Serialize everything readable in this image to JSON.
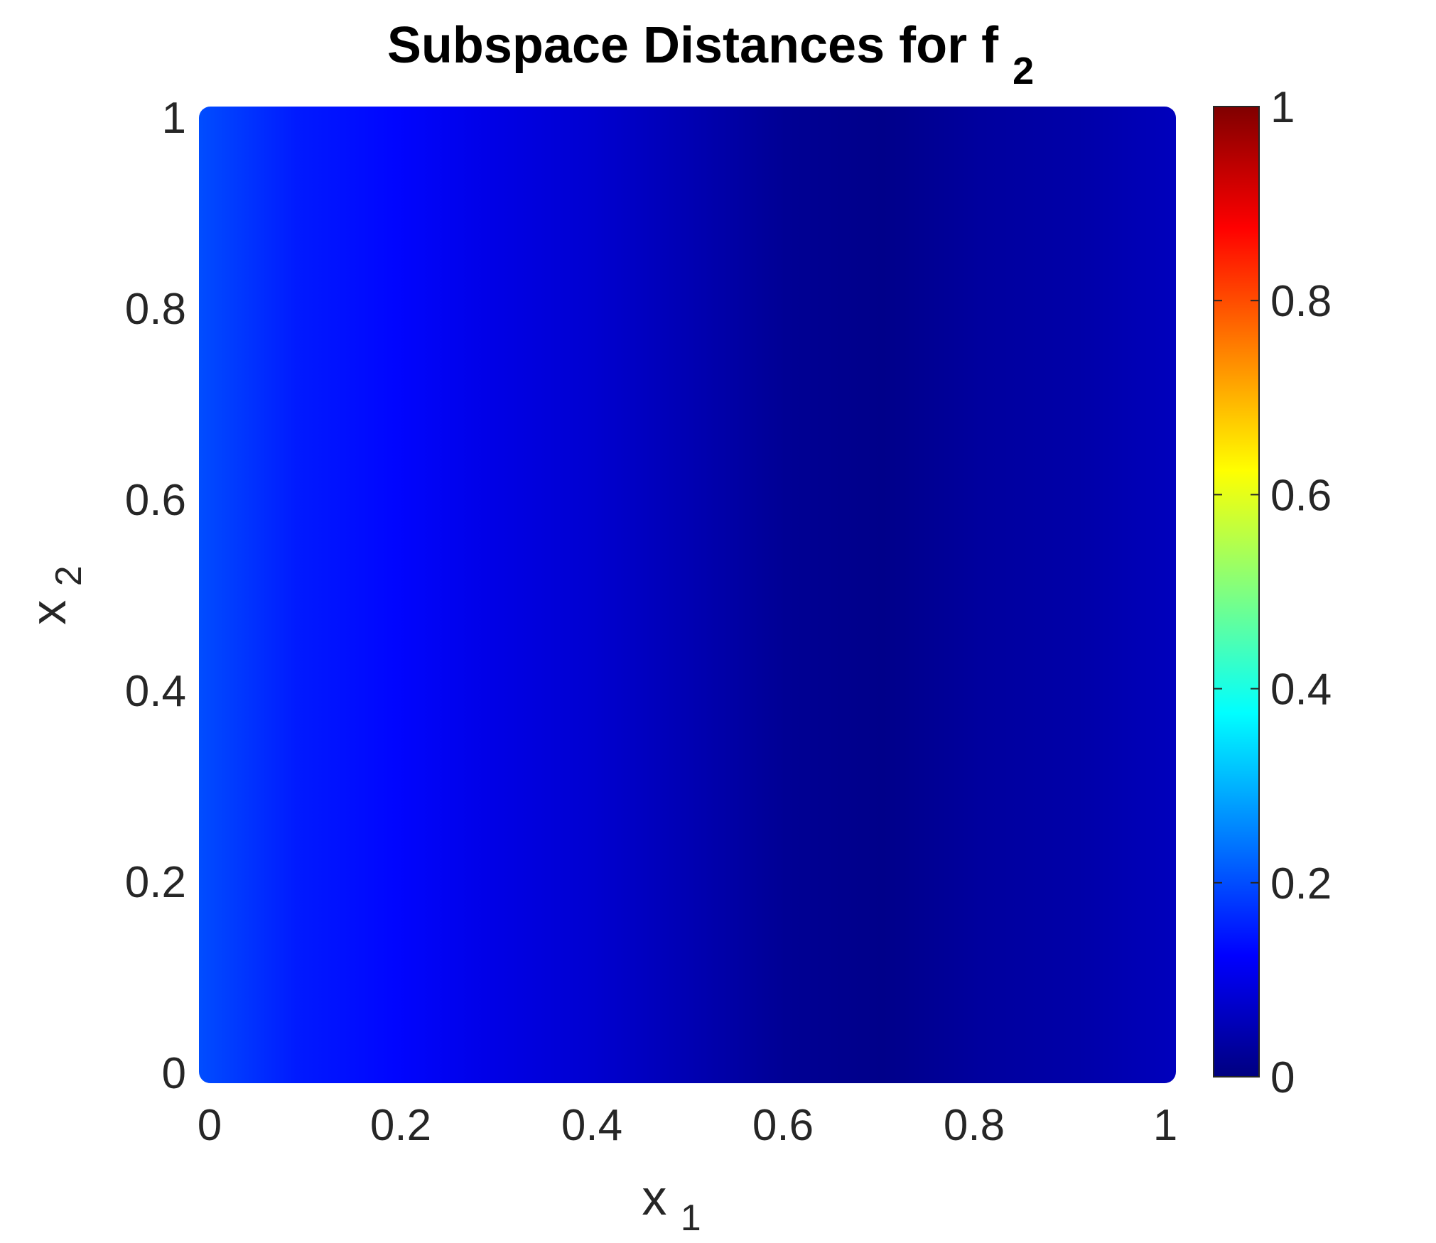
{
  "chart_data": {
    "type": "heatmap",
    "title": "Subspace Distances for f",
    "title_subscript": "2",
    "xlabel": "x",
    "xlabel_subscript": "1",
    "ylabel": "x",
    "ylabel_subscript": "2",
    "xlim": [
      0,
      1
    ],
    "ylim": [
      0,
      1
    ],
    "xticks": [
      0,
      0.2,
      0.4,
      0.6,
      0.8,
      1
    ],
    "xtick_labels": [
      "0",
      "0.2",
      "0.4",
      "0.6",
      "0.8",
      "1"
    ],
    "yticks": [
      0,
      0.2,
      0.4,
      0.6,
      0.8,
      1
    ],
    "ytick_labels": [
      "0",
      "0.2",
      "0.4",
      "0.6",
      "0.8",
      "1"
    ],
    "colorbar": {
      "colormap": "jet",
      "clim": [
        0,
        1
      ],
      "ticks": [
        0,
        0.2,
        0.4,
        0.6,
        0.8,
        1
      ],
      "tick_labels": [
        "0",
        "0.2",
        "0.4",
        "0.6",
        "0.8",
        "1"
      ]
    },
    "profile_note": "values vary with x1 only; constant along x2",
    "x1_profile": {
      "x1": [
        0.0,
        0.1,
        0.2,
        0.3,
        0.4,
        0.5,
        0.6,
        0.7,
        0.8,
        0.9,
        1.0
      ],
      "value": [
        0.2,
        0.15,
        0.13,
        0.1,
        0.08,
        0.05,
        0.02,
        0.01,
        0.03,
        0.04,
        0.06
      ]
    },
    "grid": false,
    "legend": "none"
  }
}
